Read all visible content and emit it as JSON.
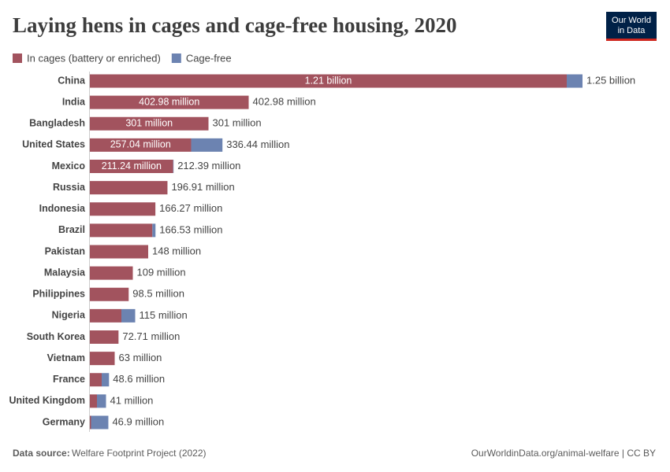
{
  "chart_data": {
    "type": "stacked-bar-horizontal",
    "title": "Laying hens in cages and cage-free housing, 2020",
    "logo": [
      "Our World",
      "in Data"
    ],
    "source_label": "Data source:",
    "source": "Welfare Footprint Project (2022)",
    "footer_right": "OurWorldinData.org/animal-welfare | CC BY",
    "categories": [
      "China",
      "India",
      "Bangladesh",
      "United States",
      "Mexico",
      "Russia",
      "Indonesia",
      "Brazil",
      "Pakistan",
      "Malaysia",
      "Philippines",
      "Nigeria",
      "South Korea",
      "Vietnam",
      "France",
      "United Kingdom",
      "Germany"
    ],
    "series": [
      {
        "name": "In cages (battery or enriched)",
        "color": "#a2535e",
        "values": [
          1210000000,
          402980000,
          301000000,
          257040000,
          211240000,
          196910000,
          166270000,
          158530000,
          148000000,
          109000000,
          98500000,
          80000000,
          72710000,
          63000000,
          30000000,
          18000000,
          3000000
        ],
        "value_labels": [
          "1.21 billion",
          "402.98 million",
          "301 million",
          "257.04 million",
          "211.24 million",
          null,
          null,
          null,
          null,
          null,
          null,
          null,
          null,
          null,
          null,
          null,
          null
        ]
      },
      {
        "name": "Cage-free",
        "color": "#6c83b1",
        "values": [
          40000000,
          0,
          0,
          79400000,
          1150000,
          0,
          0,
          8000000,
          0,
          0,
          0,
          35000000,
          0,
          0,
          18600000,
          23000000,
          43900000
        ]
      }
    ],
    "totals": [
      1250000000,
      402980000,
      301000000,
      336440000,
      212390000,
      196910000,
      166270000,
      166530000,
      148000000,
      109000000,
      98500000,
      115000000,
      72710000,
      63000000,
      48600000,
      41000000,
      46900000
    ],
    "total_labels": [
      "1.25 billion",
      "402.98 million",
      "301 million",
      "336.44 million",
      "212.39 million",
      "196.91 million",
      "166.27 million",
      "166.53 million",
      "148 million",
      "109 million",
      "98.5 million",
      "115 million",
      "72.71 million",
      "63 million",
      "48.6 million",
      "41 million",
      "46.9 million"
    ]
  }
}
